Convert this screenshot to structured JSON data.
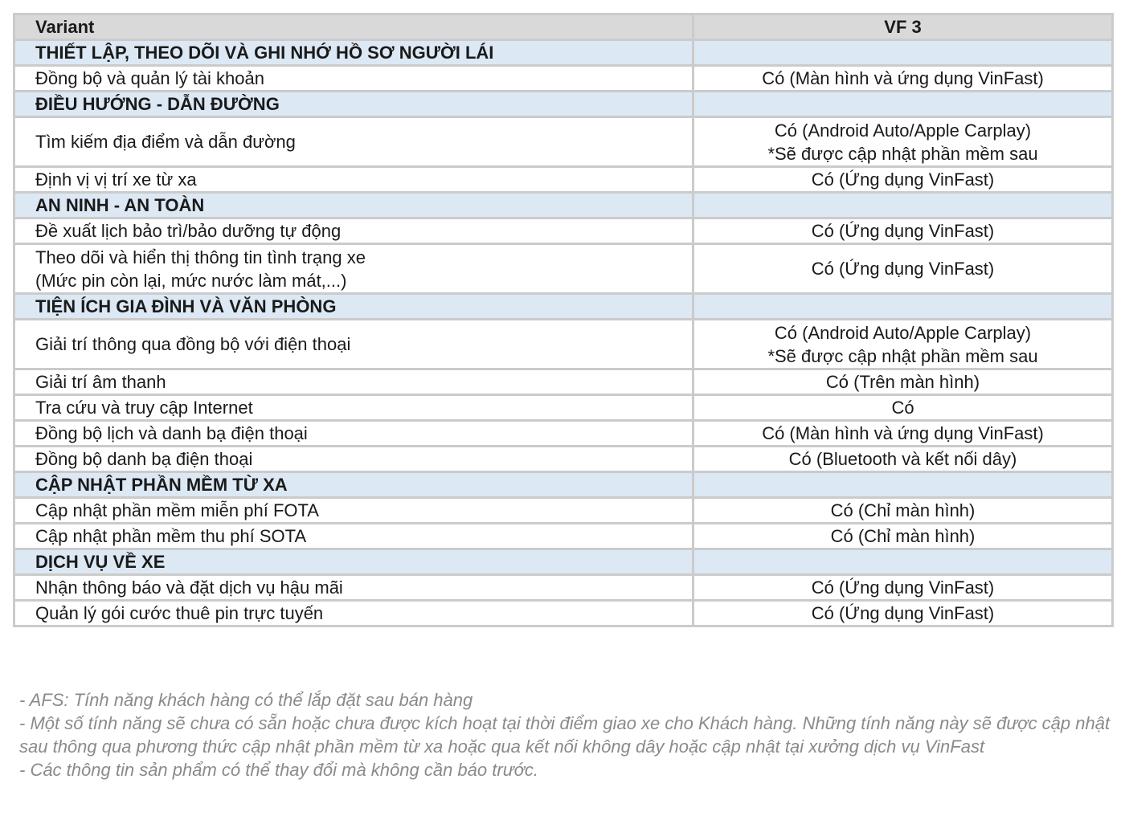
{
  "header": {
    "label": "Variant",
    "model": "VF 3"
  },
  "rows": [
    {
      "type": "section",
      "label": "THIẾT LẬP, THEO DÕI VÀ GHI NHỚ HỒ SƠ NGƯỜI LÁI",
      "value": ""
    },
    {
      "type": "item",
      "label": "Đồng bộ và quản lý tài khoản",
      "value": "Có (Màn hình và ứng dụng VinFast)"
    },
    {
      "type": "section",
      "label": "ĐIỀU HƯỚNG - DẪN ĐƯỜNG",
      "value": ""
    },
    {
      "type": "item",
      "label": "Tìm kiếm địa điểm và dẫn đường",
      "value": "Có (Android Auto/Apple Carplay)\n*Sẽ được cập nhật phần mềm sau",
      "tall": true
    },
    {
      "type": "item",
      "label": "Định vị vị trí xe từ xa",
      "value": "Có (Ứng dụng VinFast)"
    },
    {
      "type": "section",
      "label": "AN NINH - AN TOÀN",
      "value": ""
    },
    {
      "type": "item",
      "label": "Đề xuất lịch bảo trì/bảo dưỡng tự động",
      "value": "Có (Ứng dụng VinFast)"
    },
    {
      "type": "item",
      "label": "Theo dõi và hiển thị thông tin tình trạng xe\n(Mức pin còn lại, mức nước làm mát,...)",
      "value": "Có (Ứng dụng VinFast)",
      "tall": true
    },
    {
      "type": "section",
      "label": "TIỆN ÍCH GIA ĐÌNH VÀ VĂN PHÒNG",
      "value": ""
    },
    {
      "type": "item",
      "label": "Giải trí thông qua đồng bộ với điện thoại",
      "value": "Có (Android Auto/Apple Carplay)\n*Sẽ được cập nhật phần mềm sau",
      "tall": true
    },
    {
      "type": "item",
      "label": "Giải trí âm thanh",
      "value": "Có (Trên màn hình)"
    },
    {
      "type": "item",
      "label": "Tra cứu và truy cập Internet",
      "value": "Có"
    },
    {
      "type": "item",
      "label": "Đồng bộ lịch  và danh bạ điện thoại",
      "value": "Có (Màn hình và ứng dụng VinFast)"
    },
    {
      "type": "item",
      "label": "Đồng bộ danh bạ điện thoại",
      "value": "Có (Bluetooth và kết nối dây)"
    },
    {
      "type": "section",
      "label": "CẬP NHẬT PHẦN MỀM TỪ XA",
      "value": ""
    },
    {
      "type": "item",
      "label": "Cập nhật phần mềm miễn phí FOTA",
      "value": "Có (Chỉ màn hình)"
    },
    {
      "type": "item",
      "label": "Cập nhật phần mềm thu phí SOTA",
      "value": "Có (Chỉ màn hình)"
    },
    {
      "type": "section",
      "label": "DỊCH VỤ VỀ XE",
      "value": ""
    },
    {
      "type": "item",
      "label": "Nhận thông báo và đặt dịch vụ hậu mãi",
      "value": "Có (Ứng dụng VinFast)"
    },
    {
      "type": "item",
      "label": "Quản lý gói cước thuê pin trực tuyến",
      "value": "Có (Ứng dụng VinFast)"
    }
  ],
  "notes": [
    "- AFS: Tính năng khách hàng có thể lắp đặt sau bán hàng",
    "- Một số tính năng sẽ chưa có sẵn hoặc chưa được kích hoạt tại thời điểm giao xe cho Khách hàng. Những tính năng này sẽ được cập nhật sau thông qua phương thức cập nhật phần mềm từ xa hoặc qua kết nối không dây hoặc cập nhật tại xưởng dịch vụ VinFast",
    "- Các thông tin sản phẩm có thể thay đổi mà không cần báo trước."
  ],
  "colors": {
    "header_bg": "#d9d9d9",
    "section_bg": "#dce8f4",
    "border": "#cbcbcb",
    "notes": "#8a8a8a"
  }
}
